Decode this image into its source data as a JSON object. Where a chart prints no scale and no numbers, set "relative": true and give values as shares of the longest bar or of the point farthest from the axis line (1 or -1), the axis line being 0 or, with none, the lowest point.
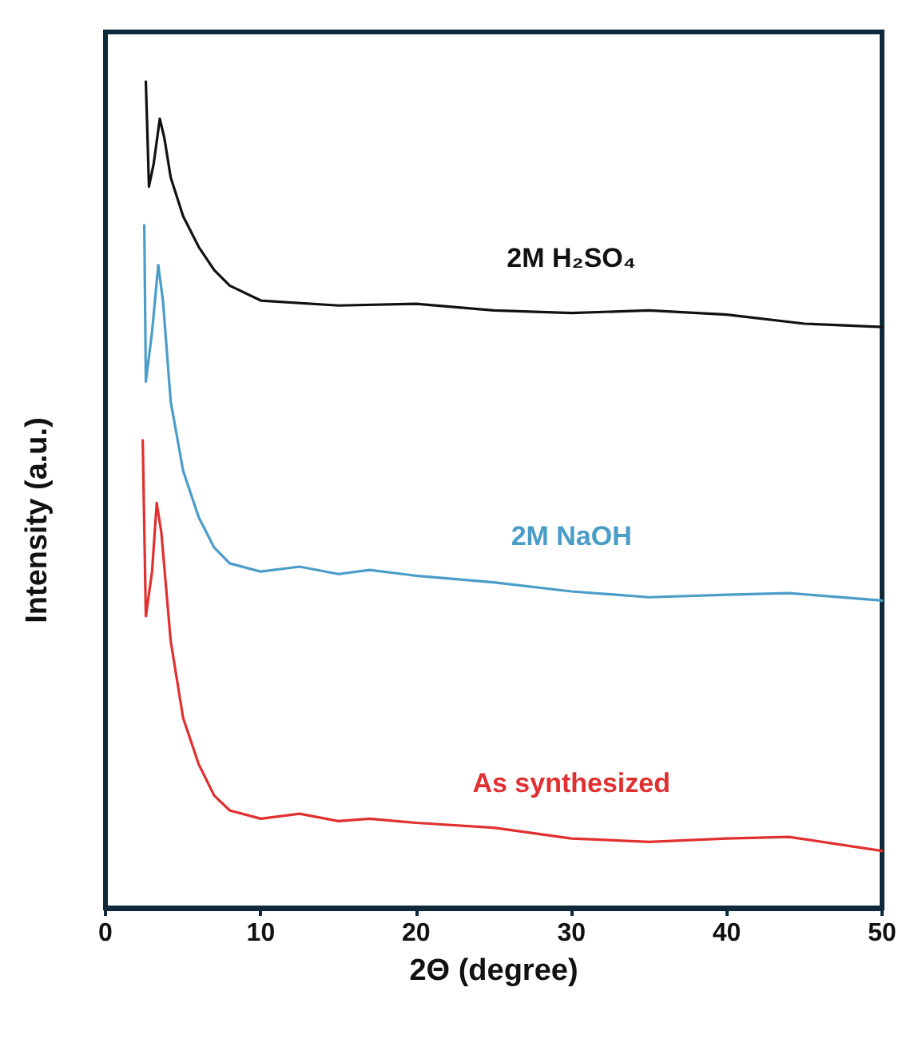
{
  "chart_data": {
    "type": "line",
    "xlabel": "2Θ (degree)",
    "ylabel": "Intensity (a.u.)",
    "relative": true,
    "xlim": [
      0,
      50
    ],
    "xticks": [
      0,
      10,
      20,
      30,
      40,
      50
    ],
    "grid": false,
    "legend": false,
    "marker": "none",
    "line_style": "solid",
    "series": [
      {
        "name": "2M H₂SO₄",
        "color": "#111111",
        "x": [
          2.6,
          2.8,
          3.1,
          3.5,
          3.8,
          4.2,
          5,
          6,
          7,
          8,
          10,
          15,
          20,
          25,
          30,
          35,
          40,
          45,
          50
        ],
        "values": [
          1.0,
          0.873,
          0.9,
          0.955,
          0.931,
          0.884,
          0.837,
          0.8,
          0.772,
          0.753,
          0.735,
          0.729,
          0.731,
          0.723,
          0.72,
          0.723,
          0.718,
          0.707,
          0.703
        ]
      },
      {
        "name": "2M NaOH",
        "color": "#4a9cc9",
        "x": [
          2.5,
          2.6,
          3.0,
          3.4,
          3.7,
          4.2,
          5,
          6,
          7,
          8,
          10,
          12.5,
          15,
          17,
          20,
          25,
          30,
          35,
          40,
          44,
          50
        ],
        "values": [
          0.826,
          0.637,
          0.697,
          0.778,
          0.735,
          0.613,
          0.529,
          0.473,
          0.436,
          0.417,
          0.407,
          0.413,
          0.404,
          0.409,
          0.402,
          0.394,
          0.383,
          0.376,
          0.379,
          0.381,
          0.372
        ]
      },
      {
        "name": "As synthesized",
        "color": "#e03030",
        "x": [
          2.4,
          2.6,
          3.0,
          3.3,
          3.6,
          4.2,
          5,
          6,
          7,
          8,
          10,
          12.5,
          15,
          17,
          20,
          25,
          30,
          35,
          40,
          44,
          50
        ],
        "values": [
          0.566,
          0.353,
          0.407,
          0.49,
          0.454,
          0.323,
          0.23,
          0.174,
          0.136,
          0.118,
          0.108,
          0.114,
          0.105,
          0.108,
          0.103,
          0.097,
          0.084,
          0.08,
          0.084,
          0.086,
          0.069
        ]
      }
    ]
  }
}
